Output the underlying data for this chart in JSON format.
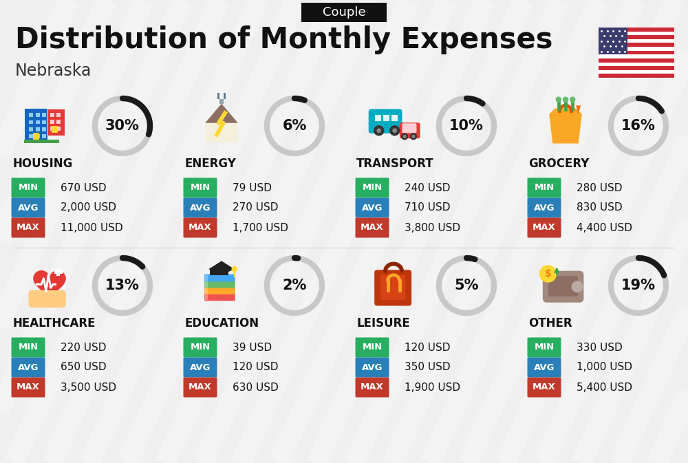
{
  "title": "Distribution of Monthly Expenses",
  "subtitle": "Nebraska",
  "badge": "Couple",
  "bg_color": "#efefef",
  "categories": [
    {
      "name": "HOUSING",
      "pct": 30,
      "min": "670 USD",
      "avg": "2,000 USD",
      "max": "11,000 USD"
    },
    {
      "name": "ENERGY",
      "pct": 6,
      "min": "79 USD",
      "avg": "270 USD",
      "max": "1,700 USD"
    },
    {
      "name": "TRANSPORT",
      "pct": 10,
      "min": "240 USD",
      "avg": "710 USD",
      "max": "3,800 USD"
    },
    {
      "name": "GROCERY",
      "pct": 16,
      "min": "280 USD",
      "avg": "830 USD",
      "max": "4,400 USD"
    },
    {
      "name": "HEALTHCARE",
      "pct": 13,
      "min": "220 USD",
      "avg": "650 USD",
      "max": "3,500 USD"
    },
    {
      "name": "EDUCATION",
      "pct": 2,
      "min": "39 USD",
      "avg": "120 USD",
      "max": "630 USD"
    },
    {
      "name": "LEISURE",
      "pct": 5,
      "min": "120 USD",
      "avg": "350 USD",
      "max": "1,900 USD"
    },
    {
      "name": "OTHER",
      "pct": 19,
      "min": "330 USD",
      "avg": "1,000 USD",
      "max": "5,400 USD"
    }
  ],
  "color_min": "#27ae60",
  "color_avg": "#2980b9",
  "color_max": "#c0392b",
  "donut_dark": "#1a1a1a",
  "donut_gray": "#c8c8c8",
  "title_fontsize": 30,
  "subtitle_fontsize": 17,
  "badge_fontsize": 13,
  "cat_fontsize": 12,
  "val_fontsize": 11,
  "label_fontsize": 9.5
}
